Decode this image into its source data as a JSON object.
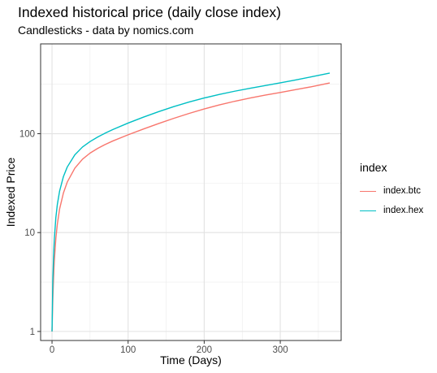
{
  "chart_data": {
    "type": "line",
    "title": "Indexed historical price (daily close index)",
    "subtitle": "Candlesticks - data by nomics.com",
    "xlabel": "Time (Days)",
    "ylabel": "Indexed Price",
    "x_scale": "linear",
    "y_scale": "log10",
    "xlim": [
      -15,
      380
    ],
    "ylim": [
      0.81,
      810
    ],
    "x_ticks": [
      0,
      100,
      200,
      300
    ],
    "y_ticks": [
      1,
      10,
      100
    ],
    "x_tick_labels": [
      "0",
      "100",
      "200",
      "300"
    ],
    "y_tick_labels": [
      "1",
      "10",
      "100"
    ],
    "grid": true,
    "legend": {
      "title": "index",
      "position": "right"
    },
    "series": [
      {
        "name": "index.btc",
        "color": "#F8766D",
        "x": [
          0,
          1,
          2,
          3,
          5,
          7,
          10,
          15,
          20,
          30,
          40,
          50,
          60,
          70,
          80,
          100,
          120,
          140,
          160,
          180,
          200,
          220,
          240,
          260,
          280,
          300,
          320,
          340,
          365
        ],
        "values": [
          1,
          2.1,
          3.5,
          5.2,
          8.7,
          12.2,
          17.4,
          25.2,
          32.4,
          44.8,
          55.2,
          63.7,
          71.0,
          77.9,
          84.5,
          97.5,
          111.4,
          126.6,
          143.0,
          160.2,
          177.9,
          195.6,
          212.8,
          229.3,
          245.4,
          261.3,
          278.7,
          297.5,
          326.0
        ]
      },
      {
        "name": "index.hex",
        "color": "#00BFC4",
        "x": [
          0,
          1,
          2,
          3,
          5,
          7,
          10,
          15,
          20,
          30,
          40,
          50,
          60,
          70,
          80,
          100,
          120,
          140,
          160,
          180,
          200,
          220,
          240,
          260,
          280,
          300,
          320,
          340,
          365
        ],
        "values": [
          1,
          3.2,
          5.6,
          8.5,
          14.1,
          19.3,
          26.4,
          36.9,
          46.0,
          61.2,
          73.3,
          83.3,
          92.5,
          101.4,
          110.2,
          128.1,
          147.0,
          166.9,
          187.9,
          209.0,
          229.6,
          249.7,
          269.0,
          287.9,
          306.8,
          326.9,
          349.6,
          374.7,
          410.0
        ]
      }
    ]
  }
}
